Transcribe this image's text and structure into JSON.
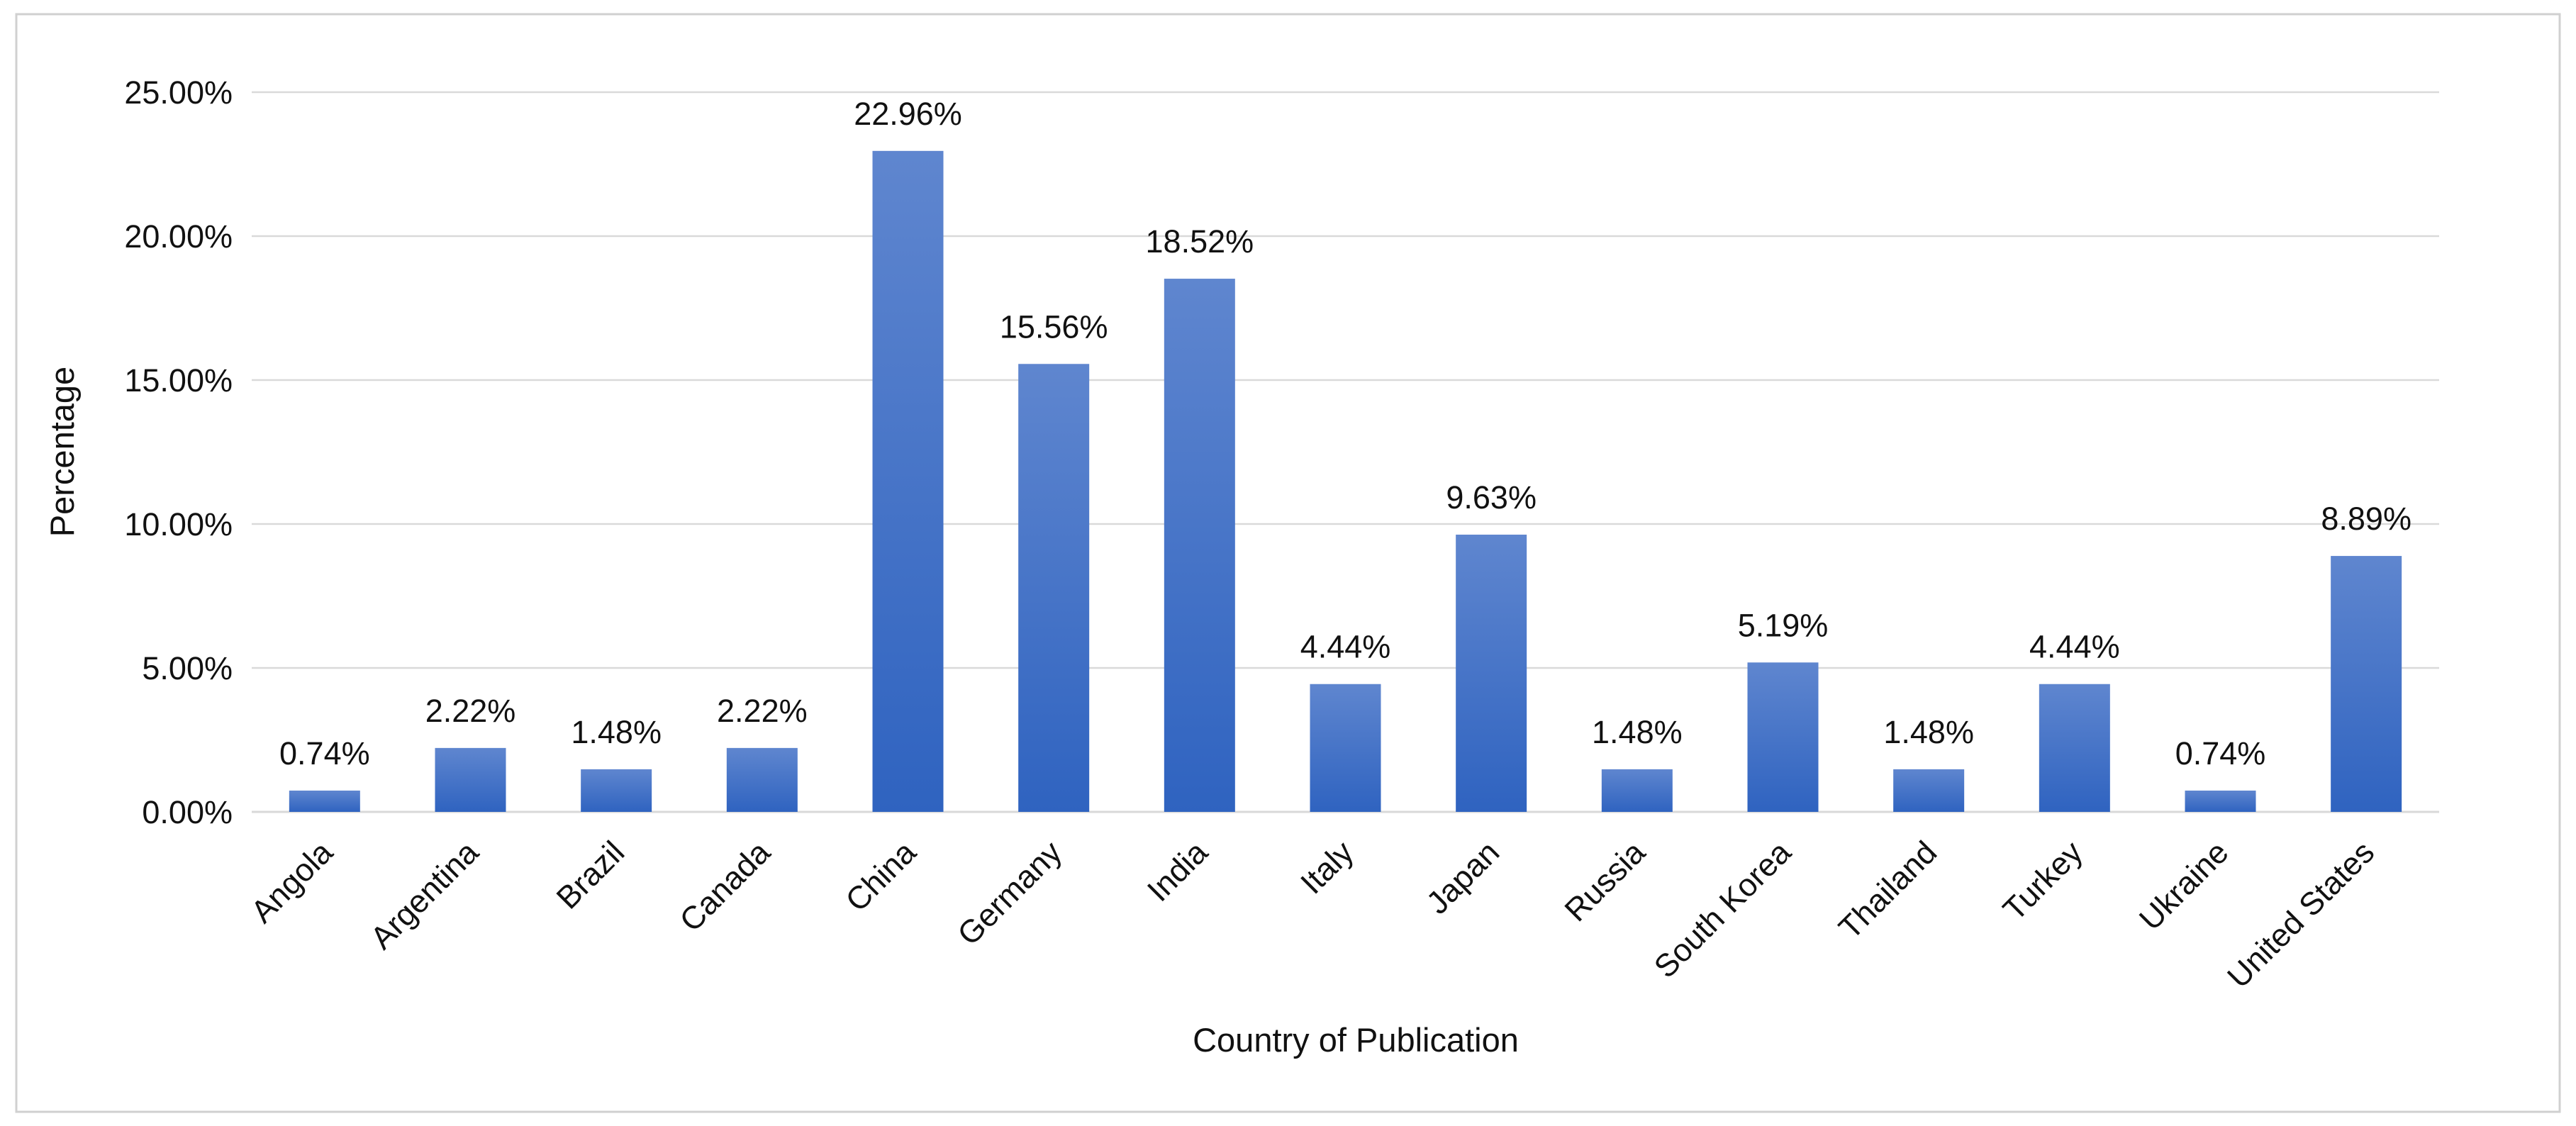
{
  "chart_data": {
    "type": "bar",
    "title": "",
    "xlabel": "Country of Publication",
    "ylabel": "Percentage",
    "ylim": [
      0,
      25
    ],
    "y_ticks": [
      "0.00%",
      "5.00%",
      "10.00%",
      "15.00%",
      "20.00%",
      "25.00%"
    ],
    "grid": true,
    "legend": "none",
    "bar_color_top": "#5f86cf",
    "bar_color_bottom": "#2f63c0",
    "grid_color": "#d9d9d9",
    "border_color": "#d0d0d0",
    "categories": [
      "Angola",
      "Argentina",
      "Brazil",
      "Canada",
      "China",
      "Germany",
      "India",
      "Italy",
      "Japan",
      "Russia",
      "South Korea",
      "Thailand",
      "Turkey",
      "Ukraine",
      "United States"
    ],
    "values": [
      0.74,
      2.22,
      1.48,
      2.22,
      22.96,
      15.56,
      18.52,
      4.44,
      9.63,
      1.48,
      5.19,
      1.48,
      4.44,
      0.74,
      8.89
    ],
    "data_labels": [
      "0.74%",
      "2.22%",
      "1.48%",
      "2.22%",
      "22.96%",
      "15.56%",
      "18.52%",
      "4.44%",
      "9.63%",
      "1.48%",
      "5.19%",
      "1.48%",
      "4.44%",
      "0.74%",
      "8.89%"
    ]
  }
}
